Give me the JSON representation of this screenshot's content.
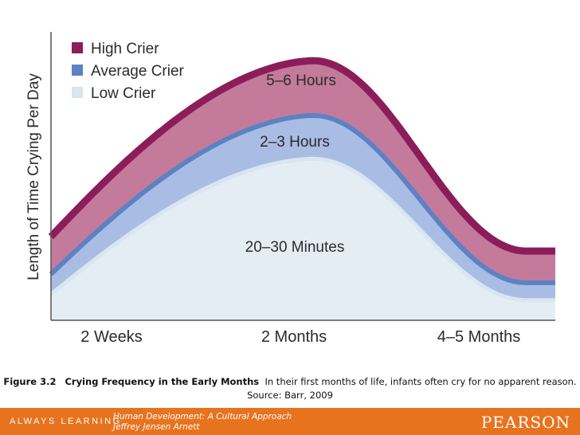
{
  "chart_data": {
    "type": "area",
    "title": "",
    "ylabel": "Length of Time Crying Per Day",
    "xlabel": "",
    "categories": [
      "2 Weeks",
      "2 Months",
      "4–5 Months"
    ],
    "grid": false,
    "legend_position": "top-left",
    "series": [
      {
        "name": "High Crier",
        "color": "#8c1d5a",
        "band_color": "#c47b9b",
        "values": [
          2.9,
          9.0,
          2.4
        ]
      },
      {
        "name": "Average Crier",
        "color": "#5b83c3",
        "band_color": "#a9bce4",
        "values": [
          1.6,
          7.1,
          1.3
        ]
      },
      {
        "name": "Low Crier",
        "color": "#d7e6f0",
        "band_color": "#e5edf4",
        "values": [
          0.9,
          5.6,
          0.7
        ]
      }
    ],
    "annotations": [
      "5–6 Hours",
      "2–3 Hours",
      "20–30 Minutes"
    ],
    "ylim": [
      0,
      10
    ]
  },
  "caption": {
    "label": "Figure 3.2",
    "title": "Crying Frequency in the Early Months",
    "text": "In their first months of life, infants often cry for no apparent reason. Source: Barr, 2009"
  },
  "footer": {
    "tagline": "ALWAYS LEARNING",
    "book_title": "Human Development: A Cultural Approach",
    "author": "Jeffrey Jensen Arnett",
    "brand": "PEARSON",
    "background": "#e8731e"
  }
}
